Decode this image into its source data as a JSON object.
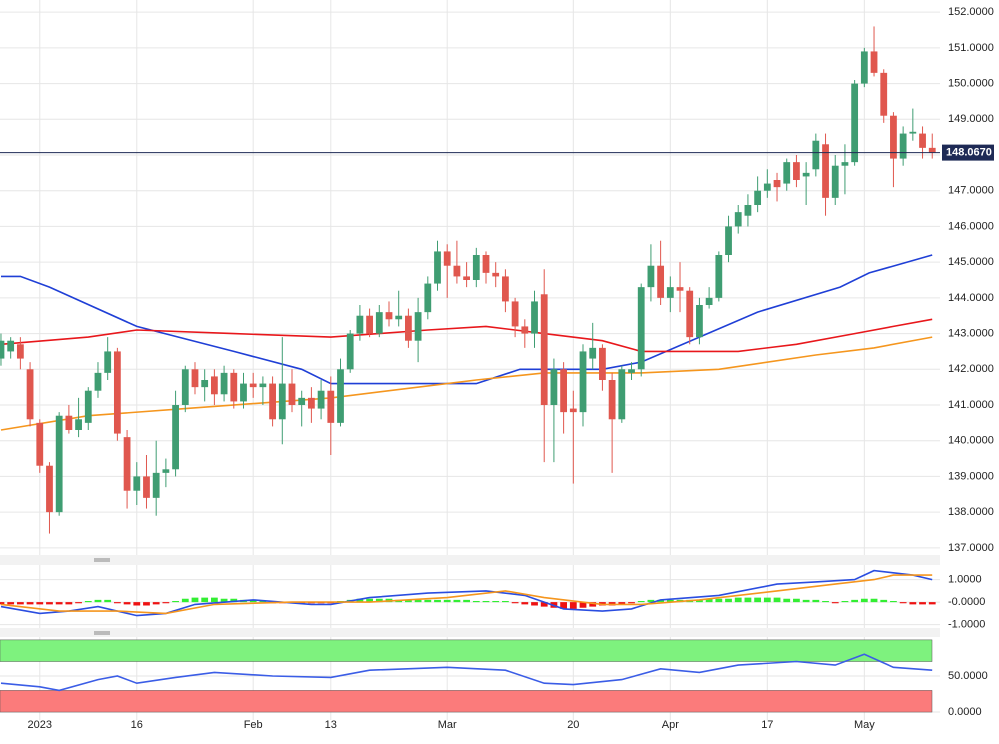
{
  "chart_data": [
    {
      "type": "candlestick",
      "x": [
        -4,
        -3,
        -2,
        -1,
        0,
        1,
        2,
        3,
        4,
        5,
        6,
        7,
        8,
        9,
        10,
        11,
        12,
        13,
        14,
        15,
        16,
        17,
        18,
        19,
        20,
        21,
        22,
        23,
        24,
        25,
        26,
        27,
        28,
        29,
        30,
        31,
        32,
        33,
        34,
        35,
        36,
        37,
        38,
        39,
        40,
        41,
        42,
        43,
        44,
        45,
        46,
        47,
        48,
        49,
        50,
        51,
        52,
        53,
        54,
        55,
        56,
        57,
        58,
        59,
        60,
        61,
        62,
        63,
        64,
        65,
        66,
        67,
        68,
        69,
        70,
        71,
        72,
        73,
        74,
        75,
        76,
        77,
        78,
        79,
        80,
        81,
        82,
        83,
        84,
        85,
        86,
        87,
        88,
        89,
        90,
        91,
        92
      ],
      "open": [
        142.3,
        142.5,
        142.7,
        142.0,
        140.5,
        139.3,
        138.0,
        140.7,
        140.3,
        140.5,
        141.4,
        141.9,
        142.5,
        140.1,
        138.6,
        139.0,
        138.4,
        139.1,
        139.2,
        141.0,
        142.0,
        141.5,
        141.8,
        141.3,
        141.9,
        141.1,
        141.6,
        141.5,
        141.6,
        140.6,
        141.6,
        141.0,
        141.2,
        140.9,
        141.4,
        140.5,
        142.0,
        143.0,
        143.5,
        143.0,
        143.6,
        143.4,
        143.5,
        142.8,
        143.6,
        144.4,
        145.3,
        144.9,
        144.6,
        144.5,
        145.2,
        144.7,
        144.6,
        143.9,
        143.2,
        143.0,
        144.1,
        141.0,
        142.0,
        140.9,
        140.8,
        142.3,
        142.6,
        141.7,
        140.6,
        141.9,
        142.0,
        144.3,
        144.9,
        144.0,
        144.3,
        144.2,
        142.9,
        143.8,
        144.0,
        145.2,
        146.0,
        146.3,
        146.6,
        147.0,
        147.3,
        147.2,
        147.8,
        147.4,
        147.6,
        148.3,
        146.8,
        147.7,
        147.8,
        150.0,
        150.9,
        150.3,
        149.1,
        147.9,
        148.6,
        148.6,
        148.2
      ],
      "high": [
        143.0,
        142.9,
        142.9,
        142.2,
        140.6,
        139.4,
        140.8,
        141.0,
        141.2,
        141.5,
        142.2,
        142.9,
        142.6,
        140.3,
        139.4,
        139.6,
        140.0,
        139.5,
        141.4,
        142.1,
        142.2,
        142.0,
        142.0,
        142.1,
        142.0,
        141.9,
        141.9,
        141.8,
        141.8,
        142.9,
        142.0,
        141.4,
        141.5,
        141.7,
        141.8,
        142.3,
        143.1,
        143.8,
        143.7,
        143.8,
        143.9,
        144.2,
        143.7,
        144.0,
        144.6,
        145.6,
        145.5,
        145.6,
        145.0,
        145.4,
        145.3,
        145.0,
        144.8,
        144.0,
        143.4,
        144.2,
        144.8,
        142.3,
        142.2,
        141.4,
        142.7,
        143.3,
        142.7,
        141.9,
        142.1,
        142.2,
        144.4,
        145.5,
        145.6,
        144.6,
        145.0,
        144.3,
        144.0,
        144.3,
        145.3,
        146.3,
        146.6,
        146.9,
        147.4,
        147.6,
        147.5,
        147.9,
        148.0,
        147.8,
        148.6,
        148.6,
        148.0,
        148.3,
        150.1,
        151.0,
        151.6,
        150.4,
        149.2,
        148.8,
        149.3,
        148.8,
        148.6
      ],
      "low": [
        142.1,
        142.3,
        142.0,
        140.4,
        139.1,
        137.4,
        137.9,
        140.2,
        140.1,
        140.3,
        141.2,
        141.7,
        140.0,
        138.1,
        138.2,
        138.1,
        137.9,
        138.7,
        139.0,
        140.8,
        141.3,
        141.1,
        141.0,
        141.1,
        140.9,
        140.9,
        141.2,
        141.0,
        140.4,
        139.9,
        140.8,
        140.4,
        140.5,
        140.6,
        139.6,
        140.4,
        141.9,
        142.8,
        142.9,
        142.9,
        143.2,
        143.2,
        142.6,
        142.2,
        143.4,
        144.2,
        144.0,
        144.4,
        144.3,
        144.3,
        144.4,
        144.3,
        143.6,
        142.9,
        142.6,
        142.6,
        139.4,
        139.4,
        140.2,
        138.8,
        140.4,
        142.0,
        141.4,
        139.1,
        140.5,
        141.7,
        141.8,
        143.9,
        143.8,
        143.6,
        143.6,
        142.7,
        142.7,
        143.7,
        143.9,
        145.0,
        145.8,
        146.0,
        146.4,
        146.8,
        146.7,
        147.0,
        147.1,
        146.6,
        147.4,
        146.3,
        146.6,
        146.9,
        147.7,
        149.9,
        150.2,
        148.9,
        147.1,
        147.7,
        148.4,
        147.9,
        147.9
      ],
      "close": [
        142.8,
        142.8,
        142.3,
        140.6,
        139.3,
        138.0,
        140.7,
        140.3,
        140.6,
        141.4,
        141.9,
        142.5,
        140.2,
        138.6,
        139.0,
        138.4,
        139.1,
        139.2,
        141.0,
        142.0,
        141.5,
        141.7,
        141.3,
        141.9,
        141.1,
        141.6,
        141.5,
        141.6,
        140.6,
        141.6,
        141.0,
        141.2,
        140.9,
        141.4,
        140.5,
        142.0,
        143.0,
        143.5,
        143.0,
        143.6,
        143.4,
        143.5,
        142.8,
        143.6,
        144.4,
        145.3,
        144.9,
        144.6,
        144.5,
        145.2,
        144.7,
        144.6,
        143.9,
        143.2,
        143.0,
        143.9,
        141.0,
        142.0,
        140.8,
        140.8,
        142.5,
        142.6,
        141.7,
        140.6,
        142.0,
        142.0,
        144.3,
        144.9,
        144.0,
        144.3,
        144.2,
        142.9,
        143.8,
        144.0,
        145.2,
        146.0,
        146.4,
        146.6,
        147.0,
        147.2,
        147.1,
        147.8,
        147.3,
        147.5,
        148.4,
        146.8,
        147.7,
        147.8,
        150.0,
        150.9,
        150.3,
        149.1,
        147.9,
        148.6,
        148.65,
        148.2,
        148.067
      ],
      "up_color": "#3f9d72",
      "down_color": "#e0574e",
      "series": [
        {
          "color": "#1f3fd6",
          "x": [
            -4,
            -2,
            1,
            10,
            20,
            27,
            30,
            45,
            49.5,
            58,
            62,
            68,
            74,
            82.5,
            85.5,
            92
          ],
          "values": [
            144.6,
            144.6,
            144.3,
            143.2,
            142.5,
            142.0,
            141.6,
            141.6,
            142.0,
            142.0,
            142.2,
            142.9,
            143.6,
            144.3,
            144.7,
            145.2
          ]
        },
        {
          "color": "#e8171b",
          "x": [
            -4,
            5,
            10,
            20,
            30,
            40,
            46,
            52,
            58,
            62,
            72,
            78,
            84,
            88,
            92
          ],
          "values": [
            142.7,
            142.9,
            143.1,
            143.0,
            142.9,
            143.1,
            143.2,
            143.0,
            142.8,
            142.5,
            142.5,
            142.7,
            143.0,
            143.2,
            143.4
          ]
        },
        {
          "color": "#f5961e",
          "x": [
            -4,
            5,
            15,
            30,
            45,
            52,
            62,
            70,
            80,
            86,
            92
          ],
          "values": [
            140.3,
            140.7,
            140.9,
            141.2,
            141.7,
            141.9,
            141.9,
            142.0,
            142.4,
            142.6,
            142.9
          ]
        }
      ],
      "last": {
        "value": 148.067,
        "label": "148.0670",
        "color": "#1e2a55"
      },
      "xlim": [
        -4.1,
        92.8
      ],
      "ylim": [
        136.8,
        152.34
      ],
      "xticks": [
        {
          "value": 0,
          "label": "2023"
        },
        {
          "value": 10,
          "label": "16"
        },
        {
          "value": 22,
          "label": "Feb"
        },
        {
          "value": 30,
          "label": "13"
        },
        {
          "value": 42,
          "label": "Mar"
        },
        {
          "value": 55,
          "label": "20"
        },
        {
          "value": 65,
          "label": "Apr"
        },
        {
          "value": 75,
          "label": "17"
        },
        {
          "value": 85,
          "label": "May"
        }
      ],
      "yticks": [
        {
          "value": 137,
          "label": "137.0000"
        },
        {
          "value": 138,
          "label": "138.0000"
        },
        {
          "value": 139,
          "label": "139.0000"
        },
        {
          "value": 140,
          "label": "140.0000"
        },
        {
          "value": 141,
          "label": "141.0000"
        },
        {
          "value": 142,
          "label": "142.0000"
        },
        {
          "value": 143,
          "label": "143.0000"
        },
        {
          "value": 144,
          "label": "144.0000"
        },
        {
          "value": 145,
          "label": "145.0000"
        },
        {
          "value": 146,
          "label": "146.0000"
        },
        {
          "value": 147,
          "label": "147.0000"
        },
        {
          "value": 148,
          "label": "148.0000"
        },
        {
          "value": 149,
          "label": "149.0000"
        },
        {
          "value": 150,
          "label": "150.0000"
        },
        {
          "value": 151,
          "label": "151.0000"
        },
        {
          "value": 152,
          "label": "152.0000"
        }
      ],
      "grid": true
    },
    {
      "type": "macd",
      "values": [
        -0.1,
        -0.1,
        -0.1,
        -0.1,
        -0.1,
        -0.1,
        -0.1,
        -0.1,
        -0.05,
        0.05,
        0.1,
        0.1,
        -0.05,
        -0.1,
        -0.15,
        -0.15,
        -0.1,
        -0.05,
        0.05,
        0.15,
        0.2,
        0.2,
        0.2,
        0.15,
        0.15,
        0.1,
        0.1,
        0.05,
        -0.05,
        -0.05,
        -0.05,
        -0.05,
        -0.05,
        -0.05,
        -0.05,
        0.05,
        0.1,
        0.15,
        0.15,
        0.15,
        0.15,
        0.1,
        0.1,
        0.1,
        0.1,
        0.1,
        0.1,
        0.1,
        0.1,
        0.05,
        0.05,
        0.05,
        0.05,
        -0.05,
        -0.1,
        -0.15,
        -0.2,
        -0.25,
        -0.3,
        -0.3,
        -0.25,
        -0.2,
        -0.15,
        -0.15,
        -0.1,
        -0.05,
        0.05,
        0.1,
        0.1,
        0.1,
        0.1,
        0.1,
        0.1,
        0.15,
        0.15,
        0.15,
        0.2,
        0.2,
        0.2,
        0.2,
        0.2,
        0.15,
        0.15,
        0.1,
        0.1,
        0.05,
        -0.05,
        0.05,
        0.1,
        0.15,
        0.15,
        0.1,
        0.05,
        -0.05,
        -0.1,
        -0.1,
        -0.1
      ],
      "up_color": "#33ee33",
      "down_color": "#ee1111",
      "series": [
        {
          "color": "#2a4de0",
          "x": [
            -4,
            0,
            3,
            6,
            10,
            13,
            16,
            22,
            28,
            30,
            34,
            40,
            46,
            50,
            54,
            58,
            61,
            64,
            70,
            76,
            80,
            84,
            86,
            90,
            92
          ],
          "values": [
            -0.2,
            -0.5,
            -0.4,
            -0.2,
            -0.6,
            -0.5,
            -0.1,
            0.1,
            -0.1,
            -0.1,
            0.2,
            0.4,
            0.5,
            0.3,
            -0.3,
            -0.4,
            -0.3,
            0.1,
            0.3,
            0.8,
            0.9,
            1.0,
            1.4,
            1.2,
            1.0
          ]
        },
        {
          "color": "#f5961e",
          "x": [
            -4,
            2,
            8,
            13,
            18,
            26,
            34,
            42,
            48,
            52,
            58,
            62,
            68,
            76,
            82,
            86,
            88,
            92
          ],
          "values": [
            -0.1,
            -0.4,
            -0.4,
            -0.5,
            -0.1,
            0.0,
            0.0,
            0.2,
            0.5,
            0.2,
            -0.1,
            -0.1,
            0.1,
            0.5,
            0.8,
            1.0,
            1.2,
            1.2
          ]
        }
      ],
      "ylim": [
        -1.15,
        1.65
      ],
      "yticks": [
        {
          "value": 1,
          "label": "1.0000"
        },
        {
          "value": 0,
          "label": "-0.0000"
        },
        {
          "value": -1,
          "label": "-1.0000"
        }
      ]
    },
    {
      "type": "rsi",
      "zones": [
        {
          "range": [
            70,
            100
          ],
          "color": "#7ef27e"
        },
        {
          "range": [
            0,
            30
          ],
          "color": "#fb7b7b"
        }
      ],
      "series": [
        {
          "color": "#3b5de6",
          "x": [
            -4,
            0,
            2,
            6,
            8,
            10,
            14,
            18,
            24,
            30,
            34,
            42,
            48,
            52,
            55,
            60,
            64,
            68,
            72,
            78,
            82,
            85,
            88,
            92
          ],
          "values": [
            40,
            35,
            30,
            45,
            50,
            40,
            48,
            55,
            50,
            48,
            58,
            62,
            58,
            40,
            38,
            45,
            60,
            55,
            65,
            70,
            65,
            80,
            62,
            58
          ]
        }
      ],
      "ylim": [
        -11,
        104
      ],
      "yticks": [
        {
          "value": 50,
          "label": "50.0000"
        },
        {
          "value": 0,
          "label": "0.0000"
        }
      ]
    }
  ]
}
